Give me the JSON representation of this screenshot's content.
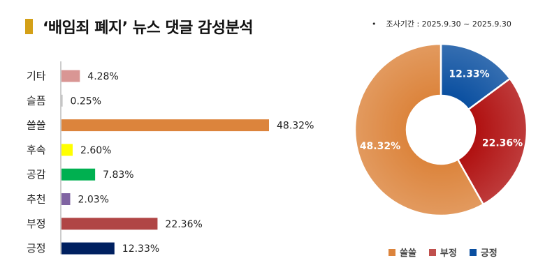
{
  "header": {
    "title": "‘배임죄 폐지’ 뉴스 댓글 감성분석",
    "survey_bullet": "•",
    "survey_period": "조사기간 : 2025.9.30 ~ 2025.9.30",
    "title_mark_color": "#d4a017"
  },
  "chart_data": [
    {
      "type": "bar",
      "orientation": "horizontal",
      "categories": [
        "기타",
        "슬픔",
        "쓸쓸",
        "후속",
        "공감",
        "추천",
        "부정",
        "긍정"
      ],
      "values": [
        4.28,
        0.25,
        48.32,
        2.6,
        7.83,
        2.03,
        22.36,
        12.33
      ],
      "value_labels": [
        "4.28%",
        "0.25%",
        "48.32%",
        "2.60%",
        "7.83%",
        "2.03%",
        "22.36%",
        "12.33%"
      ],
      "colors": [
        "#d99694",
        "#bfbfbf",
        "#dc843c",
        "#ffff00",
        "#00b050",
        "#8064a2",
        "#b04545",
        "#002060"
      ],
      "xlim": [
        0,
        50
      ],
      "unit": "%"
    },
    {
      "type": "pie",
      "style": "donut",
      "labels": [
        "긍정",
        "부정",
        "쓸쓸"
      ],
      "values": [
        12.33,
        22.36,
        48.32
      ],
      "value_labels": [
        "12.33%",
        "22.36%",
        "48.32%"
      ],
      "colors": [
        "#0a4fa0",
        "#b01010",
        "#dc843c"
      ],
      "legend": {
        "placement": "bottom",
        "entries": [
          {
            "label": "쓸쓸",
            "color": "#dc843c"
          },
          {
            "label": "부정",
            "color": "#c0504d"
          },
          {
            "label": "긍정",
            "color": "#0a4fa0"
          }
        ]
      }
    }
  ]
}
